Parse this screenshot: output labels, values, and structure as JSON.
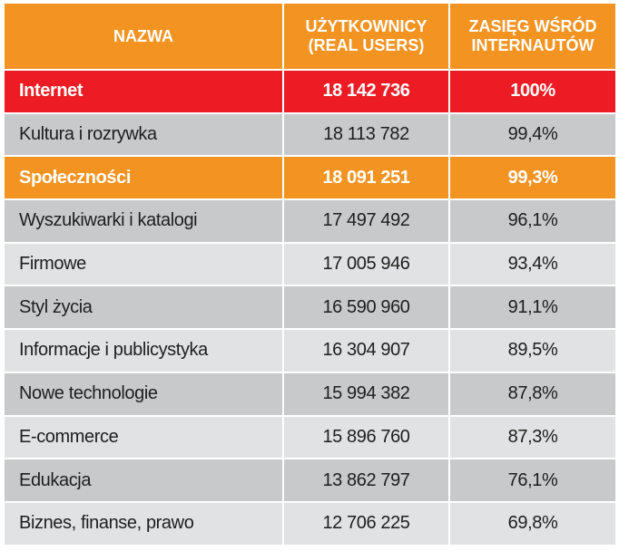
{
  "header": {
    "col_name": "NAZWA",
    "col_users_line1": "UŻYTKOWNICY",
    "col_users_line2": "(REAL USERS)",
    "col_reach_line1": "ZASIĘG WŚRÓD",
    "col_reach_line2": "INTERNAUTÓW"
  },
  "colors": {
    "header": "#f39321",
    "highlight_red": "#ed1c24",
    "highlight_orange": "#f39321",
    "row_dark": "#c8c9cb",
    "row_light": "#e1e2e3"
  },
  "rows": [
    {
      "name": "Internet",
      "users": "18 142 736",
      "reach": "100%",
      "style": "red"
    },
    {
      "name": "Kultura i rozrywka",
      "users": "18 113 782",
      "reach": "99,4%",
      "style": "dark"
    },
    {
      "name": "Społeczności",
      "users": "18 091 251",
      "reach": "99,3%",
      "style": "orange"
    },
    {
      "name": "Wyszukiwarki i katalogi",
      "users": "17 497 492",
      "reach": "96,1%",
      "style": "dark"
    },
    {
      "name": "Firmowe",
      "users": "17 005 946",
      "reach": "93,4%",
      "style": "light"
    },
    {
      "name": "Styl życia",
      "users": "16 590 960",
      "reach": "91,1%",
      "style": "dark"
    },
    {
      "name": "Informacje i publicystyka",
      "users": "16 304 907",
      "reach": "89,5%",
      "style": "light"
    },
    {
      "name": "Nowe technologie",
      "users": "15 994 382",
      "reach": "87,8%",
      "style": "dark"
    },
    {
      "name": "E-commerce",
      "users": "15 896 760",
      "reach": "87,3%",
      "style": "light"
    },
    {
      "name": "Edukacja",
      "users": "13 862 797",
      "reach": "76,1%",
      "style": "dark"
    },
    {
      "name": "Biznes, finanse, prawo",
      "users": "12 706 225",
      "reach": "69,8%",
      "style": "light"
    }
  ]
}
